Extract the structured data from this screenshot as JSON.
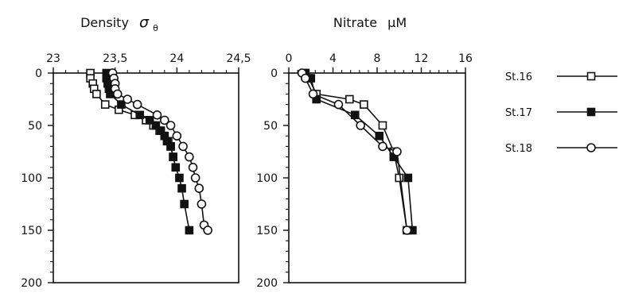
{
  "chart_data": [
    {
      "type": "line",
      "title": "Density",
      "title_symbol": "σ",
      "title_symbol_subscript": "θ",
      "x_axis_position": "top",
      "y_inverted": true,
      "xlim": [
        23,
        24.5
      ],
      "ylim": [
        0,
        200
      ],
      "x_ticks": [
        23,
        23.5,
        24,
        24.5
      ],
      "x_tick_labels": [
        "23",
        "23,5",
        "24",
        "24,5"
      ],
      "y_ticks": [
        0,
        50,
        100,
        150,
        200
      ],
      "y_tick_labels": [
        "0",
        "50",
        "100",
        "150",
        "200"
      ],
      "series": [
        {
          "name": "St.16",
          "marker": "open-square",
          "x": [
            23.3,
            23.3,
            23.32,
            23.33,
            23.35,
            23.42,
            23.53,
            23.66,
            23.75,
            23.81,
            23.86,
            23.9,
            23.93,
            23.95,
            23.97
          ],
          "y": [
            0,
            5,
            10,
            15,
            20,
            30,
            35,
            40,
            45,
            50,
            55,
            60,
            65,
            70,
            80
          ]
        },
        {
          "name": "St.17",
          "marker": "filled-square",
          "x": [
            23.43,
            23.43,
            23.44,
            23.45,
            23.46,
            23.55,
            23.7,
            23.78,
            23.83,
            23.87,
            23.9,
            23.92,
            23.95,
            23.97,
            23.99,
            24.02,
            24.04,
            24.06,
            24.1
          ],
          "y": [
            0,
            5,
            10,
            15,
            20,
            30,
            40,
            45,
            50,
            55,
            60,
            65,
            70,
            80,
            90,
            100,
            110,
            125,
            150
          ]
        },
        {
          "name": "St.18",
          "marker": "open-circle",
          "x": [
            23.48,
            23.49,
            23.5,
            23.5,
            23.52,
            23.6,
            23.68,
            23.84,
            23.9,
            23.95,
            24.0,
            24.05,
            24.1,
            24.13,
            24.15,
            24.18,
            24.2,
            24.22,
            24.25
          ],
          "y": [
            0,
            5,
            10,
            15,
            20,
            25,
            30,
            40,
            45,
            50,
            60,
            70,
            80,
            90,
            100,
            110,
            125,
            145,
            150
          ]
        }
      ]
    },
    {
      "type": "line",
      "title": "Nitrate",
      "title_unit": "μM",
      "x_axis_position": "top",
      "y_inverted": true,
      "xlim": [
        0,
        16
      ],
      "ylim": [
        0,
        200
      ],
      "x_ticks": [
        0,
        4,
        8,
        12,
        16
      ],
      "x_tick_labels": [
        "0",
        "4",
        "8",
        "12",
        "16"
      ],
      "y_ticks": [
        0,
        50,
        100,
        150,
        200
      ],
      "y_tick_labels": [
        "0",
        "50",
        "100",
        "150",
        "200"
      ],
      "series": [
        {
          "name": "St.16",
          "marker": "open-square",
          "x": [
            1.5,
            1.8,
            2.5,
            5.5,
            6.8,
            8.5,
            9.5,
            10.0,
            10.7
          ],
          "y": [
            0,
            5,
            20,
            25,
            30,
            50,
            75,
            100,
            150
          ]
        },
        {
          "name": "St.17",
          "marker": "filled-square",
          "x": [
            1.5,
            2.0,
            2.5,
            6.0,
            8.2,
            9.5,
            10.8,
            11.2
          ],
          "y": [
            0,
            5,
            25,
            40,
            60,
            80,
            100,
            150
          ]
        },
        {
          "name": "St.18",
          "marker": "open-circle",
          "x": [
            1.2,
            1.5,
            2.2,
            4.5,
            6.5,
            8.5,
            9.8,
            10.7
          ],
          "y": [
            0,
            5,
            20,
            30,
            50,
            70,
            75,
            150
          ]
        }
      ]
    }
  ],
  "legend": {
    "placement": "right",
    "items": [
      {
        "label": "St.16",
        "marker": "open-square"
      },
      {
        "label": "St.17",
        "marker": "filled-square"
      },
      {
        "label": "St.18",
        "marker": "open-circle"
      }
    ]
  }
}
